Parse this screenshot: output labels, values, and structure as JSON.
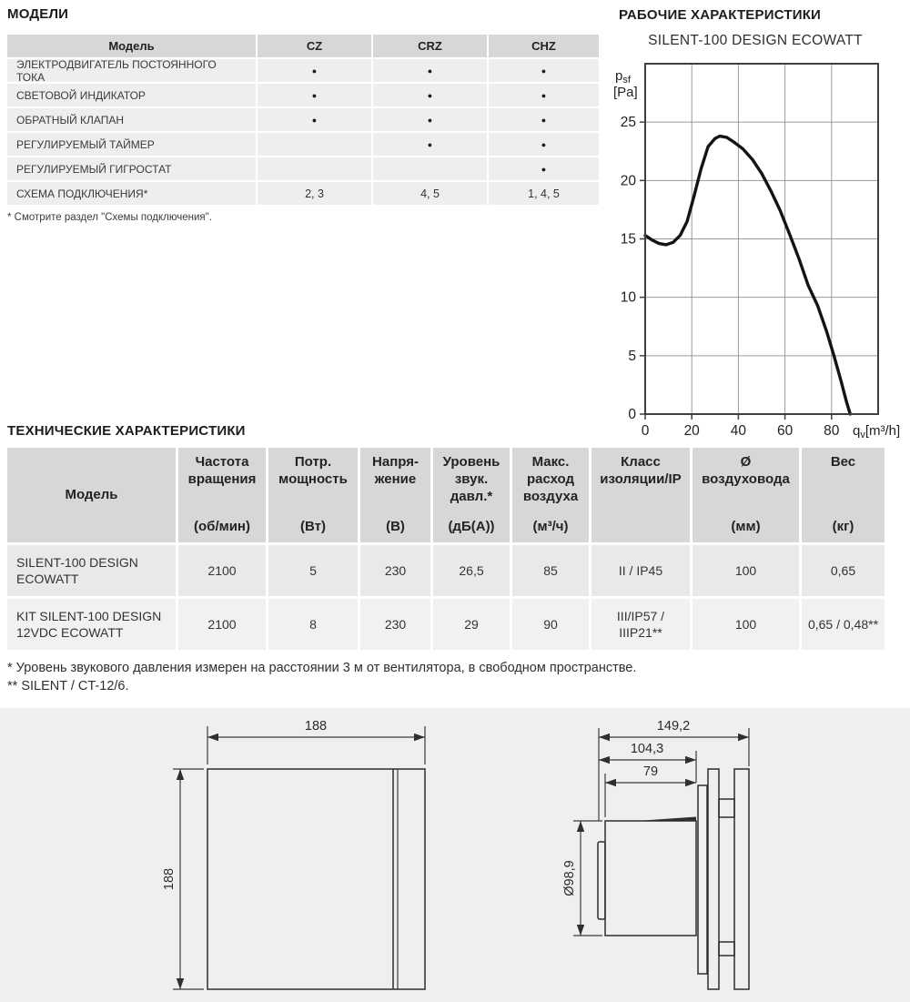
{
  "models_section": {
    "heading": "МОДЕЛИ",
    "table": {
      "columns": [
        "Модель",
        "CZ",
        "CRZ",
        "CHZ"
      ],
      "rows": [
        {
          "label": "ЭЛЕКТРОДВИГАТЕЛЬ ПОСТОЯННОГО ТОКА",
          "cz": "●",
          "crz": "●",
          "chz": "●"
        },
        {
          "label": "СВЕТОВОЙ ИНДИКАТОР",
          "cz": "●",
          "crz": "●",
          "chz": "●"
        },
        {
          "label": "ОБРАТНЫЙ КЛАПАН",
          "cz": "●",
          "crz": "●",
          "chz": "●"
        },
        {
          "label": "РЕГУЛИРУЕМЫЙ ТАЙМЕР",
          "cz": "",
          "crz": "●",
          "chz": "●"
        },
        {
          "label": "РЕГУЛИРУЕМЫЙ ГИГРОСТАТ",
          "cz": "",
          "crz": "",
          "chz": "●"
        },
        {
          "label": "СХЕМА ПОДКЛЮЧЕНИЯ*",
          "cz": "2, 3",
          "crz": "4, 5",
          "chz": "1, 4, 5"
        }
      ]
    },
    "footnote": "* Смотрите раздел \"Схемы подключения\"."
  },
  "performance_section": {
    "heading": "РАБОЧИЕ ХАРАКТЕРИСТИКИ"
  },
  "chart_data": {
    "type": "line",
    "title": "SILENT-100 DESIGN ECOWATT",
    "x_axis_label": {
      "sym": "q",
      "sub": "v",
      "unit": "[m³/h]"
    },
    "y_axis_label": {
      "sym": "p",
      "sub": "sf",
      "unit": "[Pa]"
    },
    "xlim": [
      0,
      100
    ],
    "ylim": [
      0,
      30
    ],
    "x_ticks": [
      0,
      20,
      40,
      60,
      80
    ],
    "y_ticks": [
      0,
      5,
      10,
      15,
      20,
      25
    ],
    "grid": true,
    "legend": "none",
    "series": [
      {
        "name": "SILENT-100 DESIGN ECOWATT",
        "points": [
          [
            0,
            15.3
          ],
          [
            3,
            14.9
          ],
          [
            6,
            14.6
          ],
          [
            9,
            14.5
          ],
          [
            12,
            14.7
          ],
          [
            15,
            15.3
          ],
          [
            18,
            16.5
          ],
          [
            21,
            18.7
          ],
          [
            24,
            21.0
          ],
          [
            27,
            22.9
          ],
          [
            30,
            23.6
          ],
          [
            32,
            23.8
          ],
          [
            35,
            23.7
          ],
          [
            38,
            23.3
          ],
          [
            42,
            22.7
          ],
          [
            46,
            21.8
          ],
          [
            50,
            20.6
          ],
          [
            54,
            19.1
          ],
          [
            58,
            17.4
          ],
          [
            62,
            15.4
          ],
          [
            66,
            13.3
          ],
          [
            70,
            11.0
          ],
          [
            74,
            9.3
          ],
          [
            78,
            7.0
          ],
          [
            81,
            5.0
          ],
          [
            84,
            2.9
          ],
          [
            86.5,
            1.0
          ],
          [
            88,
            0
          ]
        ]
      }
    ]
  },
  "tech_section": {
    "heading": "ТЕХНИЧЕСКИЕ ХАРАКТЕРИСТИКИ",
    "table": {
      "headers": [
        {
          "label": "Модель",
          "unit": ""
        },
        {
          "label": "Частота вращения",
          "unit": "(об/мин)"
        },
        {
          "label": "Потр. мощность",
          "unit": "(Вт)"
        },
        {
          "label": "Напря­жение",
          "unit": "(В)"
        },
        {
          "label": "Уровень звук. давл.*",
          "unit": "(дБ(А))"
        },
        {
          "label": "Макс. расход воздуха",
          "unit": "(м³/ч)"
        },
        {
          "label": "Класс изоляции/IP",
          "unit": ""
        },
        {
          "label": "Ø воздуховода",
          "unit": "(мм)"
        },
        {
          "label": "Вес",
          "unit": "(кг)"
        }
      ],
      "rows": [
        {
          "model": "SILENT-100 DESIGN ECOWATT",
          "values": [
            "2100",
            "5",
            "230",
            "26,5",
            "85",
            "II / IP45",
            "100",
            "0,65"
          ]
        },
        {
          "model": "KIT SILENT-100 DESIGN 12VDC ECOWATT",
          "values": [
            "2100",
            "8",
            "230",
            "29",
            "90",
            "III/IP57 / IIIP21**",
            "100",
            "0,65 / 0,48**"
          ]
        }
      ]
    },
    "footnotes": [
      "* Уровень звукового давления измерен на расстоянии 3 м от вентилятора, в свободном пространстве.",
      "** SILENT / CT-12/6."
    ]
  },
  "drawings": {
    "front_view": {
      "width_label": "188",
      "height_label": "188"
    },
    "side_view": {
      "depth_label": "149,2",
      "body_depth_label": "104,3",
      "tube_depth_label": "79",
      "diameter_label": "Ø98,9"
    }
  }
}
